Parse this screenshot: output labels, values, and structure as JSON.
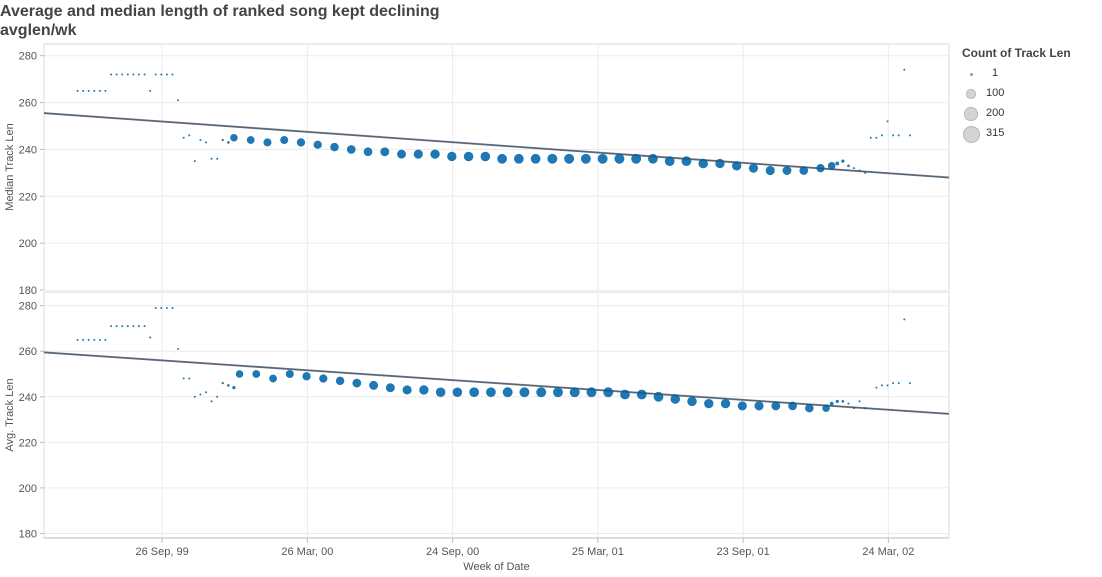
{
  "title": "Average and median length of ranked song kept declining",
  "subtitle": "avglen/wk",
  "legend": {
    "title": "Count of Track Len",
    "items": [
      {
        "label": "1",
        "value": 1
      },
      {
        "label": "100",
        "value": 100
      },
      {
        "label": "200",
        "value": 200
      },
      {
        "label": "315",
        "value": 315
      }
    ]
  },
  "colors": {
    "mark": "#1f77b4",
    "trend": "#999999",
    "grid": "#ececec",
    "legend_swatch": "#d4d4d4"
  },
  "chart_data": [
    {
      "type": "scatter",
      "xlabel": "Week of Date",
      "ylabel": "Median Track Len",
      "ylim": [
        180,
        285
      ],
      "yticks": [
        180,
        200,
        220,
        240,
        260,
        280
      ],
      "xlim": [
        "1999-05-01",
        "2002-06-08"
      ],
      "xticks": [
        {
          "date": "1999-09-26",
          "label": "26 Sep, 99"
        },
        {
          "date": "2000-03-26",
          "label": "26 Mar, 00"
        },
        {
          "date": "2000-09-24",
          "label": "24 Sep, 00"
        },
        {
          "date": "2001-03-25",
          "label": "25 Mar, 01"
        },
        {
          "date": "2001-09-23",
          "label": "23 Sep, 01"
        },
        {
          "date": "2002-03-24",
          "label": "24 Mar, 02"
        }
      ],
      "trend": {
        "start": [
          "1999-05-01",
          255.5
        ],
        "end": [
          "2002-06-08",
          228
        ]
      },
      "points": [
        [
          "1999-06-12",
          265,
          1
        ],
        [
          "1999-06-19",
          265,
          1
        ],
        [
          "1999-06-26",
          265,
          1
        ],
        [
          "1999-07-03",
          265,
          1
        ],
        [
          "1999-07-10",
          265,
          1
        ],
        [
          "1999-07-17",
          265,
          1
        ],
        [
          "1999-07-24",
          272,
          1
        ],
        [
          "1999-07-31",
          272,
          1
        ],
        [
          "1999-08-07",
          272,
          1
        ],
        [
          "1999-08-14",
          272,
          1
        ],
        [
          "1999-08-21",
          272,
          1
        ],
        [
          "1999-08-28",
          272,
          1
        ],
        [
          "1999-09-04",
          272,
          1
        ],
        [
          "1999-09-11",
          265,
          1
        ],
        [
          "1999-09-18",
          272,
          1
        ],
        [
          "1999-09-25",
          272,
          1
        ],
        [
          "1999-10-02",
          272,
          1
        ],
        [
          "1999-10-09",
          272,
          1
        ],
        [
          "1999-10-16",
          261,
          1
        ],
        [
          "1999-10-23",
          245,
          3
        ],
        [
          "1999-10-30",
          246,
          3
        ],
        [
          "1999-11-06",
          235,
          5
        ],
        [
          "1999-11-13",
          244,
          3
        ],
        [
          "1999-11-20",
          243,
          3
        ],
        [
          "1999-11-27",
          236,
          8
        ],
        [
          "1999-12-04",
          236,
          8
        ],
        [
          "1999-12-11",
          244,
          15
        ],
        [
          "1999-12-18",
          243,
          20
        ],
        [
          "1999-12-25",
          245,
          150
        ],
        [
          "2000-01-15",
          244,
          160
        ],
        [
          "2000-02-05",
          243,
          170
        ],
        [
          "2000-02-26",
          244,
          170
        ],
        [
          "2000-03-18",
          243,
          180
        ],
        [
          "2000-04-08",
          242,
          180
        ],
        [
          "2000-04-29",
          241,
          190
        ],
        [
          "2000-05-20",
          240,
          200
        ],
        [
          "2000-06-10",
          239,
          200
        ],
        [
          "2000-07-01",
          239,
          210
        ],
        [
          "2000-07-22",
          238,
          210
        ],
        [
          "2000-08-12",
          238,
          220
        ],
        [
          "2000-09-02",
          238,
          230
        ],
        [
          "2000-09-23",
          237,
          230
        ],
        [
          "2000-10-14",
          237,
          240
        ],
        [
          "2000-11-04",
          237,
          240
        ],
        [
          "2000-11-25",
          236,
          250
        ],
        [
          "2000-12-16",
          236,
          250
        ],
        [
          "2001-01-06",
          236,
          250
        ],
        [
          "2001-01-27",
          236,
          260
        ],
        [
          "2001-02-17",
          236,
          260
        ],
        [
          "2001-03-10",
          236,
          260
        ],
        [
          "2001-03-31",
          236,
          260
        ],
        [
          "2001-04-21",
          236,
          260
        ],
        [
          "2001-05-12",
          236,
          260
        ],
        [
          "2001-06-02",
          236,
          250
        ],
        [
          "2001-06-23",
          235,
          250
        ],
        [
          "2001-07-14",
          235,
          250
        ],
        [
          "2001-08-04",
          234,
          240
        ],
        [
          "2001-08-25",
          234,
          230
        ],
        [
          "2001-09-15",
          233,
          230
        ],
        [
          "2001-10-06",
          232,
          220
        ],
        [
          "2001-10-27",
          231,
          220
        ],
        [
          "2001-11-17",
          231,
          210
        ],
        [
          "2001-12-08",
          231,
          200
        ],
        [
          "2001-12-29",
          232,
          180
        ],
        [
          "2002-01-12",
          233,
          150
        ],
        [
          "2002-01-19",
          234,
          40
        ],
        [
          "2002-01-26",
          235,
          30
        ],
        [
          "2002-02-02",
          233,
          20
        ],
        [
          "2002-02-09",
          232,
          10
        ],
        [
          "2002-02-16",
          231,
          5
        ],
        [
          "2002-02-23",
          230,
          2
        ],
        [
          "2002-03-02",
          245,
          3
        ],
        [
          "2002-03-09",
          245,
          3
        ],
        [
          "2002-03-16",
          246,
          2
        ],
        [
          "2002-03-23",
          252,
          1
        ],
        [
          "2002-03-30",
          246,
          1
        ],
        [
          "2002-04-06",
          246,
          1
        ],
        [
          "2002-04-13",
          274,
          1
        ],
        [
          "2002-04-20",
          246,
          1
        ]
      ]
    },
    {
      "type": "scatter",
      "xlabel": "Week of Date",
      "ylabel": "Avg. Track Len",
      "ylim": [
        178,
        286
      ],
      "yticks": [
        180,
        200,
        220,
        240,
        260,
        280
      ],
      "xlim": [
        "1999-05-01",
        "2002-06-08"
      ],
      "xticks": [
        {
          "date": "1999-09-26",
          "label": "26 Sep, 99"
        },
        {
          "date": "2000-03-26",
          "label": "26 Mar, 00"
        },
        {
          "date": "2000-09-24",
          "label": "24 Sep, 00"
        },
        {
          "date": "2001-03-25",
          "label": "25 Mar, 01"
        },
        {
          "date": "2001-09-23",
          "label": "23 Sep, 01"
        },
        {
          "date": "2002-03-24",
          "label": "24 Mar, 02"
        }
      ],
      "trend": {
        "start": [
          "1999-05-01",
          259.5
        ],
        "end": [
          "2002-06-08",
          232.5
        ]
      },
      "points": [
        [
          "1999-06-12",
          265,
          1
        ],
        [
          "1999-06-19",
          265,
          1
        ],
        [
          "1999-06-26",
          265,
          1
        ],
        [
          "1999-07-03",
          265,
          1
        ],
        [
          "1999-07-10",
          265,
          1
        ],
        [
          "1999-07-17",
          265,
          1
        ],
        [
          "1999-07-24",
          271,
          1
        ],
        [
          "1999-07-31",
          271,
          1
        ],
        [
          "1999-08-07",
          271,
          1
        ],
        [
          "1999-08-14",
          271,
          1
        ],
        [
          "1999-08-21",
          271,
          1
        ],
        [
          "1999-08-28",
          271,
          1
        ],
        [
          "1999-09-04",
          271,
          1
        ],
        [
          "1999-09-11",
          266,
          1
        ],
        [
          "1999-09-18",
          279,
          1
        ],
        [
          "1999-09-25",
          279,
          1
        ],
        [
          "1999-10-02",
          279,
          1
        ],
        [
          "1999-10-09",
          279,
          1
        ],
        [
          "1999-10-16",
          261,
          1
        ],
        [
          "1999-10-23",
          248,
          3
        ],
        [
          "1999-10-30",
          248,
          3
        ],
        [
          "1999-11-06",
          240,
          5
        ],
        [
          "1999-11-13",
          241,
          3
        ],
        [
          "1999-11-20",
          242,
          5
        ],
        [
          "1999-11-27",
          238,
          8
        ],
        [
          "1999-12-04",
          240,
          8
        ],
        [
          "1999-12-11",
          246,
          15
        ],
        [
          "1999-12-18",
          245,
          20
        ],
        [
          "1999-12-25",
          244,
          30
        ],
        [
          "2000-01-01",
          250,
          150
        ],
        [
          "2000-01-22",
          250,
          160
        ],
        [
          "2000-02-12",
          248,
          160
        ],
        [
          "2000-03-04",
          250,
          170
        ],
        [
          "2000-03-25",
          249,
          180
        ],
        [
          "2000-04-15",
          248,
          180
        ],
        [
          "2000-05-06",
          247,
          190
        ],
        [
          "2000-05-27",
          246,
          200
        ],
        [
          "2000-06-17",
          245,
          210
        ],
        [
          "2000-07-08",
          244,
          210
        ],
        [
          "2000-07-29",
          243,
          220
        ],
        [
          "2000-08-19",
          243,
          230
        ],
        [
          "2000-09-09",
          242,
          240
        ],
        [
          "2000-09-30",
          242,
          240
        ],
        [
          "2000-10-21",
          242,
          250
        ],
        [
          "2000-11-11",
          242,
          250
        ],
        [
          "2000-12-02",
          242,
          260
        ],
        [
          "2000-12-23",
          242,
          260
        ],
        [
          "2001-01-13",
          242,
          260
        ],
        [
          "2001-02-03",
          242,
          260
        ],
        [
          "2001-02-24",
          242,
          260
        ],
        [
          "2001-03-17",
          242,
          260
        ],
        [
          "2001-04-07",
          242,
          260
        ],
        [
          "2001-04-28",
          241,
          250
        ],
        [
          "2001-05-19",
          241,
          250
        ],
        [
          "2001-06-09",
          240,
          250
        ],
        [
          "2001-06-30",
          239,
          240
        ],
        [
          "2001-07-21",
          238,
          240
        ],
        [
          "2001-08-11",
          237,
          230
        ],
        [
          "2001-09-01",
          237,
          230
        ],
        [
          "2001-09-22",
          236,
          220
        ],
        [
          "2001-10-13",
          236,
          220
        ],
        [
          "2001-11-03",
          236,
          210
        ],
        [
          "2001-11-24",
          236,
          200
        ],
        [
          "2001-12-15",
          235,
          190
        ],
        [
          "2002-01-05",
          235,
          150
        ],
        [
          "2002-01-12",
          237,
          40
        ],
        [
          "2002-01-19",
          238,
          30
        ],
        [
          "2002-01-26",
          238,
          20
        ],
        [
          "2002-02-02",
          237,
          10
        ],
        [
          "2002-02-09",
          235,
          8
        ],
        [
          "2002-02-16",
          238,
          5
        ],
        [
          "2002-02-23",
          235,
          2
        ],
        [
          "2002-03-09",
          244,
          2
        ],
        [
          "2002-03-16",
          245,
          1
        ],
        [
          "2002-03-23",
          245,
          1
        ],
        [
          "2002-03-30",
          246,
          1
        ],
        [
          "2002-04-06",
          246,
          1
        ],
        [
          "2002-04-13",
          274,
          1
        ],
        [
          "2002-04-20",
          246,
          1
        ]
      ]
    }
  ]
}
